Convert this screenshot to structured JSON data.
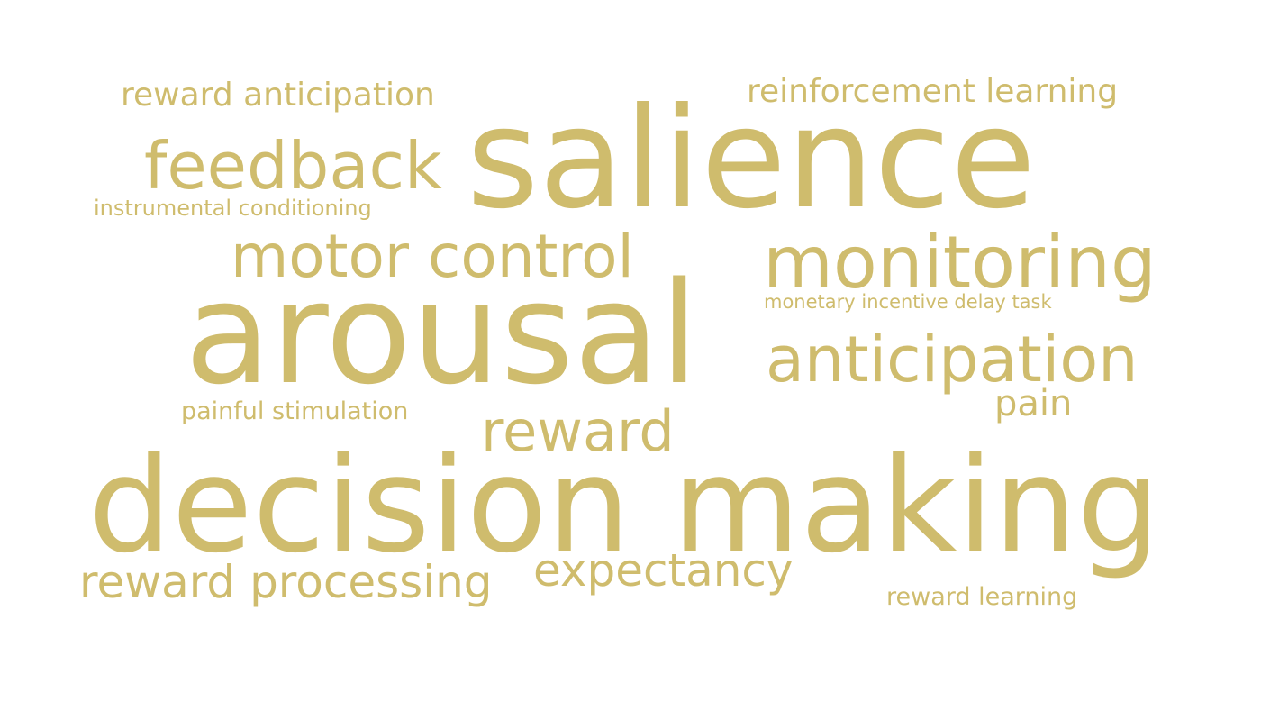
{
  "theme": {
    "word_color": "#cfbc6d",
    "background": "#ffffff"
  },
  "words": [
    "reward anticipation",
    "reinforcement learning",
    "salience",
    "feedback",
    "instrumental conditioning",
    "motor control",
    "monitoring",
    "monetary incentive delay task",
    "arousal",
    "anticipation",
    "pain",
    "painful stimulation",
    "reward",
    "decision making",
    "reward processing",
    "expectancy",
    "reward learning"
  ]
}
